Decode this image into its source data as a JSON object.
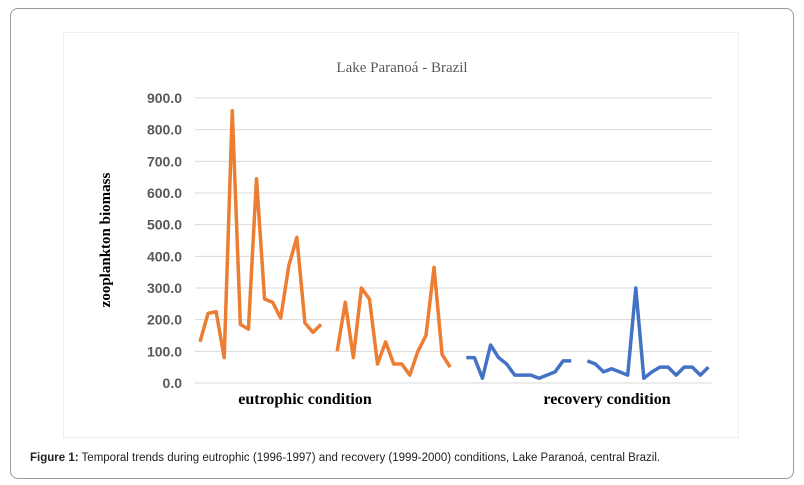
{
  "caption": {
    "label": "Figure 1:",
    "text": " Temporal trends during eutrophic (1996-1997) and recovery (1999-2000) conditions, Lake Paranoá, central Brazil."
  },
  "chart_data": {
    "type": "line",
    "title": "Lake Paranoá - Brazil",
    "ylabel": "zooplankton biomass",
    "xlabel": "",
    "ylim": [
      0,
      900
    ],
    "yticks": [
      "0.0",
      "100.0",
      "200.0",
      "300.0",
      "400.0",
      "500.0",
      "600.0",
      "700.0",
      "800.0",
      "900.0"
    ],
    "grid": true,
    "annotations": [
      "eutrophic condition",
      "recovery condition"
    ],
    "series": [
      {
        "color": "#ED7D31",
        "values": [
          130,
          220,
          225,
          80,
          860,
          185,
          170,
          645,
          265,
          255,
          205,
          370,
          460,
          190,
          160,
          185,
          null,
          100,
          255,
          80,
          300,
          265,
          60,
          130,
          60,
          60,
          25,
          100,
          150,
          365,
          90,
          50,
          null,
          null,
          null,
          null,
          null,
          null,
          null,
          null,
          null,
          null,
          null,
          null,
          null,
          null,
          null,
          null,
          null,
          null,
          null,
          null,
          null,
          null,
          null,
          null,
          null,
          null,
          null,
          null,
          null,
          null,
          null,
          null
        ]
      },
      {
        "color": "#4472C4",
        "values": [
          null,
          null,
          null,
          null,
          null,
          null,
          null,
          null,
          null,
          null,
          null,
          null,
          null,
          null,
          null,
          null,
          null,
          null,
          null,
          null,
          null,
          null,
          null,
          null,
          null,
          null,
          null,
          null,
          null,
          null,
          null,
          null,
          null,
          80,
          80,
          15,
          120,
          80,
          60,
          25,
          25,
          25,
          15,
          25,
          35,
          70,
          70,
          null,
          70,
          60,
          35,
          45,
          35,
          25,
          300,
          15,
          35,
          50,
          50,
          25,
          50,
          50,
          25,
          50
        ]
      }
    ]
  }
}
